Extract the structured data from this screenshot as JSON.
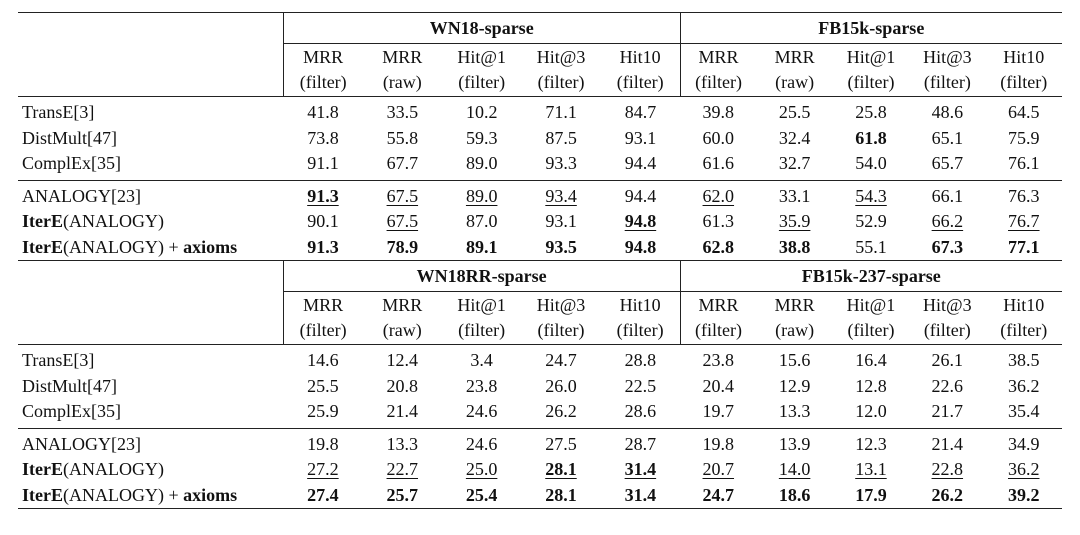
{
  "tables": [
    {
      "groups": [
        "WN18-sparse",
        "FB15k-sparse"
      ],
      "metrics": [
        [
          "MRR",
          "(filter)"
        ],
        [
          "MRR",
          "(raw)"
        ],
        [
          "Hit@1",
          "(filter)"
        ],
        [
          "Hit@3",
          "(filter)"
        ],
        [
          "Hit10",
          "(filter)"
        ],
        [
          "MRR",
          "(filter)"
        ],
        [
          "MRR",
          "(raw)"
        ],
        [
          "Hit@1",
          "(filter)"
        ],
        [
          "Hit@3",
          "(filter)"
        ],
        [
          "Hit10",
          "(filter)"
        ]
      ],
      "sections": [
        [
          {
            "name": [
              {
                "text": "TransE[3]"
              }
            ],
            "cells": [
              "41.8",
              "33.5",
              "10.2",
              "71.1",
              "84.7",
              "39.8",
              "25.5",
              "25.8",
              "48.6",
              "64.5"
            ],
            "bold": [],
            "underline": []
          },
          {
            "name": [
              {
                "text": "DistMult[47]"
              }
            ],
            "cells": [
              "73.8",
              "55.8",
              "59.3",
              "87.5",
              "93.1",
              "60.0",
              "32.4",
              "61.8",
              "65.1",
              "75.9"
            ],
            "bold": [
              7
            ],
            "underline": []
          },
          {
            "name": [
              {
                "text": "ComplEx[35]"
              }
            ],
            "cells": [
              "91.1",
              "67.7",
              "89.0",
              "93.3",
              "94.4",
              "61.6",
              "32.7",
              "54.0",
              "65.7",
              "76.1"
            ],
            "bold": [],
            "underline": []
          }
        ],
        [
          {
            "name": [
              {
                "text": "ANALOGY[23]"
              }
            ],
            "cells": [
              "91.3",
              "67.5",
              "89.0",
              "93.4",
              "94.4",
              "62.0",
              "33.1",
              "54.3",
              "66.1",
              "76.3"
            ],
            "bold": [
              0
            ],
            "underline": [
              0,
              1,
              2,
              3,
              5,
              7
            ]
          },
          {
            "name": [
              {
                "text": "IterE",
                "bold": true
              },
              {
                "text": "(ANALOGY)"
              }
            ],
            "cells": [
              "90.1",
              "67.5",
              "87.0",
              "93.1",
              "94.8",
              "61.3",
              "35.9",
              "52.9",
              "66.2",
              "76.7"
            ],
            "bold": [
              4
            ],
            "underline": [
              1,
              4,
              6,
              8,
              9
            ]
          },
          {
            "name": [
              {
                "text": "IterE",
                "bold": true
              },
              {
                "text": "(ANALOGY) + "
              },
              {
                "text": "axioms",
                "bold": true
              }
            ],
            "cells": [
              "91.3",
              "78.9",
              "89.1",
              "93.5",
              "94.8",
              "62.8",
              "38.8",
              "55.1",
              "67.3",
              "77.1"
            ],
            "bold": [
              0,
              1,
              2,
              3,
              4,
              5,
              6,
              8,
              9
            ],
            "underline": []
          }
        ]
      ]
    },
    {
      "groups": [
        "WN18RR-sparse",
        "FB15k-237-sparse"
      ],
      "metrics": [
        [
          "MRR",
          "(filter)"
        ],
        [
          "MRR",
          "(raw)"
        ],
        [
          "Hit@1",
          "(filter)"
        ],
        [
          "Hit@3",
          "(filter)"
        ],
        [
          "Hit10",
          "(filter)"
        ],
        [
          "MRR",
          "(filter)"
        ],
        [
          "MRR",
          "(raw)"
        ],
        [
          "Hit@1",
          "(filter)"
        ],
        [
          "Hit@3",
          "(filter)"
        ],
        [
          "Hit10",
          "(filter)"
        ]
      ],
      "sections": [
        [
          {
            "name": [
              {
                "text": "TransE[3]"
              }
            ],
            "cells": [
              "14.6",
              "12.4",
              "3.4",
              "24.7",
              "28.8",
              "23.8",
              "15.6",
              "16.4",
              "26.1",
              "38.5"
            ],
            "bold": [],
            "underline": []
          },
          {
            "name": [
              {
                "text": "DistMult[47]"
              }
            ],
            "cells": [
              "25.5",
              "20.8",
              "23.8",
              "26.0",
              "22.5",
              "20.4",
              "12.9",
              "12.8",
              "22.6",
              "36.2"
            ],
            "bold": [],
            "underline": []
          },
          {
            "name": [
              {
                "text": "ComplEx[35]"
              }
            ],
            "cells": [
              "25.9",
              "21.4",
              "24.6",
              "26.2",
              "28.6",
              "19.7",
              "13.3",
              "12.0",
              "21.7",
              "35.4"
            ],
            "bold": [],
            "underline": []
          }
        ],
        [
          {
            "name": [
              {
                "text": "ANALOGY[23]"
              }
            ],
            "cells": [
              "19.8",
              "13.3",
              "24.6",
              "27.5",
              "28.7",
              "19.8",
              "13.9",
              "12.3",
              "21.4",
              "34.9"
            ],
            "bold": [],
            "underline": []
          },
          {
            "name": [
              {
                "text": "IterE",
                "bold": true
              },
              {
                "text": "(ANALOGY)"
              }
            ],
            "cells": [
              "27.2",
              "22.7",
              "25.0",
              "28.1",
              "31.4",
              "20.7",
              "14.0",
              "13.1",
              "22.8",
              "36.2"
            ],
            "bold": [
              3,
              4
            ],
            "underline": [
              0,
              1,
              2,
              3,
              4,
              5,
              6,
              7,
              8,
              9
            ]
          },
          {
            "name": [
              {
                "text": "IterE",
                "bold": true
              },
              {
                "text": "(ANALOGY) + "
              },
              {
                "text": "axioms",
                "bold": true
              }
            ],
            "cells": [
              "27.4",
              "25.7",
              "25.4",
              "28.1",
              "31.4",
              "24.7",
              "18.6",
              "17.9",
              "26.2",
              "39.2"
            ],
            "bold": [
              0,
              1,
              2,
              3,
              4,
              5,
              6,
              7,
              8,
              9
            ],
            "underline": []
          }
        ]
      ]
    }
  ]
}
